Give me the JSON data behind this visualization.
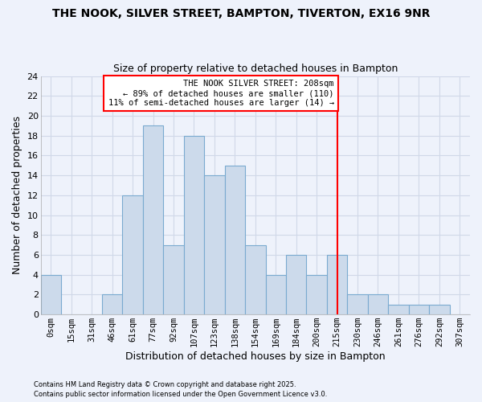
{
  "title": "THE NOOK, SILVER STREET, BAMPTON, TIVERTON, EX16 9NR",
  "subtitle": "Size of property relative to detached houses in Bampton",
  "xlabel": "Distribution of detached houses by size in Bampton",
  "ylabel": "Number of detached properties",
  "bin_labels": [
    "0sqm",
    "15sqm",
    "31sqm",
    "46sqm",
    "61sqm",
    "77sqm",
    "92sqm",
    "107sqm",
    "123sqm",
    "138sqm",
    "154sqm",
    "169sqm",
    "184sqm",
    "200sqm",
    "215sqm",
    "230sqm",
    "246sqm",
    "261sqm",
    "276sqm",
    "292sqm",
    "307sqm"
  ],
  "bar_heights": [
    4,
    0,
    0,
    2,
    12,
    19,
    7,
    18,
    14,
    15,
    7,
    4,
    6,
    4,
    6,
    2,
    2,
    1,
    1,
    1,
    0
  ],
  "bar_color": "#ccdaeb",
  "bar_edge_color": "#7aaad0",
  "grid_color": "#d0d8e8",
  "vline_x": 14,
  "vline_color": "red",
  "annotation_text": "THE NOOK SILVER STREET: 208sqm\n← 89% of detached houses are smaller (110)\n11% of semi-detached houses are larger (14) →",
  "annotation_box_color": "white",
  "annotation_box_edge_color": "red",
  "ylim": [
    0,
    24
  ],
  "yticks": [
    0,
    2,
    4,
    6,
    8,
    10,
    12,
    14,
    16,
    18,
    20,
    22,
    24
  ],
  "footnote1": "Contains HM Land Registry data © Crown copyright and database right 2025.",
  "footnote2": "Contains public sector information licensed under the Open Government Licence v3.0.",
  "bg_color": "#eef2fb"
}
